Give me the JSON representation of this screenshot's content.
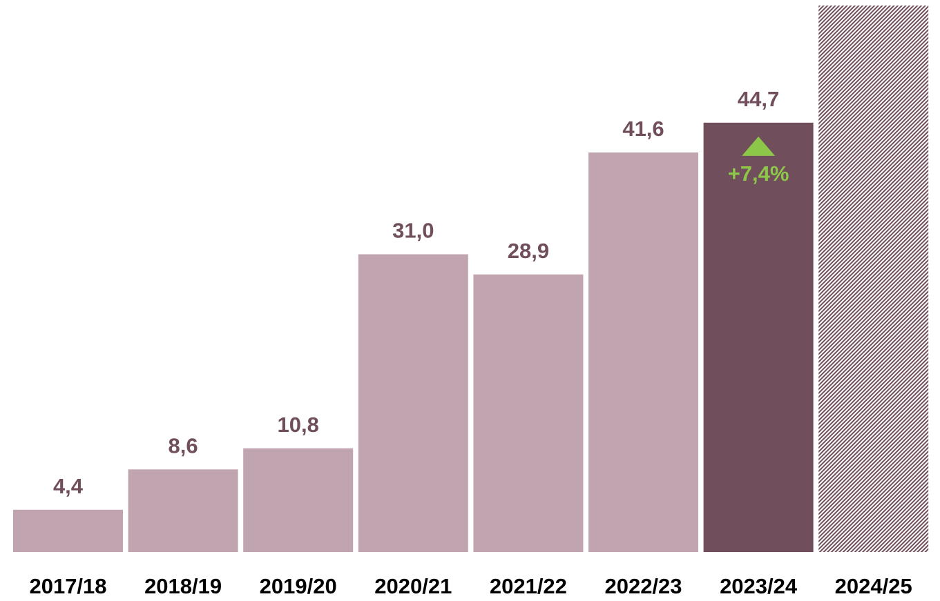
{
  "chart_data": {
    "type": "bar",
    "categories": [
      "2017/18",
      "2018/19",
      "2019/20",
      "2020/21",
      "2021/22",
      "2022/23",
      "2023/24",
      "2024/25"
    ],
    "values": [
      4.4,
      8.6,
      10.8,
      31.0,
      28.9,
      41.6,
      44.7,
      null
    ],
    "value_labels": [
      "4,4",
      "8,6",
      "10,8",
      "31,0",
      "28,9",
      "41,6",
      "44,7",
      null
    ],
    "colors": [
      "#c0a5b1",
      "#c0a5b1",
      "#c0a5b1",
      "#c0a5b1",
      "#c0a5b1",
      "#c0a5b1",
      "#714e5c",
      "#714e5c"
    ],
    "label_color": "#714e5c",
    "ylim": [
      0,
      56.9
    ],
    "annotation": {
      "category": "2023/24",
      "text": "+7,4%",
      "color": "#8dc74a"
    }
  }
}
